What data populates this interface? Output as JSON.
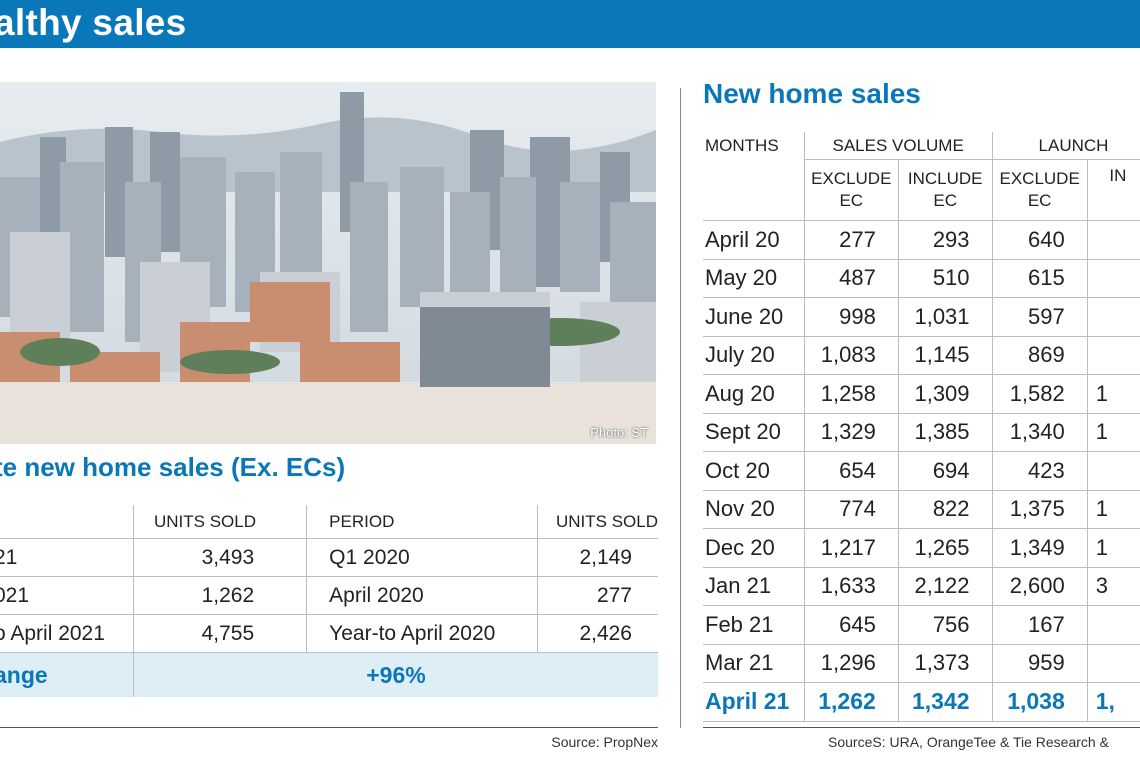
{
  "banner": {
    "title": "althy sales"
  },
  "photo": {
    "credit": "Photo: ST"
  },
  "left_table": {
    "title": "te new home sales (Ex. ECs)",
    "headers": [
      "",
      "UNITS SOLD",
      "PERIOD",
      "UNITS SOLD"
    ],
    "rows": [
      [
        "21",
        "3,493",
        "Q1 2020",
        "2,149"
      ],
      [
        "021",
        "1,262",
        "April 2020",
        "277"
      ],
      [
        "o April 2021",
        "4,755",
        "Year-to April 2020",
        "2,426"
      ]
    ],
    "change_label": "ange",
    "change_value": "+96%",
    "source": "Source: PropNex"
  },
  "right_table": {
    "title": "New home sales",
    "header_months": "MONTHS",
    "header_sales": "SALES VOLUME",
    "header_launch": "LAUNCH",
    "subheaders": [
      "EXCLUDE\nEC",
      "INCLUDE\nEC",
      "EXCLUDE\nEC",
      "IN"
    ],
    "rows": [
      [
        "April 20",
        "277",
        "293",
        "640",
        ""
      ],
      [
        "May 20",
        "487",
        "510",
        "615",
        ""
      ],
      [
        "June 20",
        "998",
        "1,031",
        "597",
        ""
      ],
      [
        "July 20",
        "1,083",
        "1,145",
        "869",
        ""
      ],
      [
        "Aug 20",
        "1,258",
        "1,309",
        "1,582",
        "1"
      ],
      [
        "Sept 20",
        "1,329",
        "1,385",
        "1,340",
        "1"
      ],
      [
        "Oct 20",
        "654",
        "694",
        "423",
        ""
      ],
      [
        "Nov 20",
        "774",
        "822",
        "1,375",
        "1"
      ],
      [
        "Dec 20",
        "1,217",
        "1,265",
        "1,349",
        "1"
      ],
      [
        "Jan 21",
        "1,633",
        "2,122",
        "2,600",
        "3"
      ],
      [
        "Feb 21",
        "645",
        "756",
        "167",
        ""
      ],
      [
        "Mar 21",
        "1,296",
        "1,373",
        "959",
        ""
      ],
      [
        "April 21",
        "1,262",
        "1,342",
        "1,038",
        "1,"
      ]
    ],
    "source": "SourceS: URA, OrangeTee & Tie Research &"
  }
}
